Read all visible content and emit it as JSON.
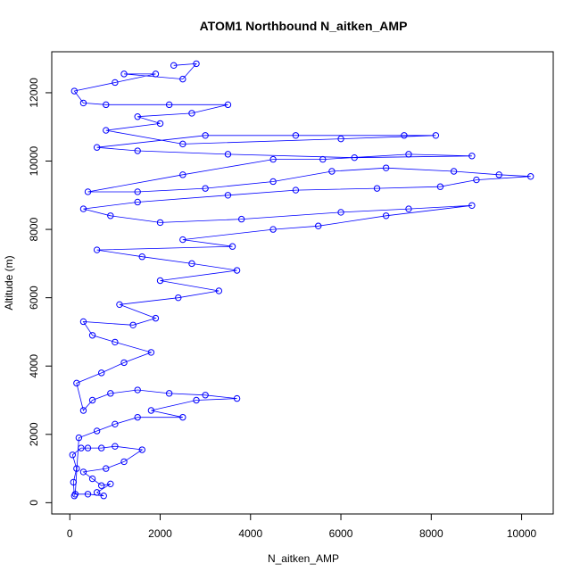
{
  "chart_data": {
    "type": "scatter",
    "title": "ATOM1 Northbound N_aitken_AMP",
    "xlabel": "N_aitken_AMP",
    "ylabel": "Altitude (m)",
    "xlim": [
      -400,
      10700
    ],
    "ylim": [
      -330,
      13200
    ],
    "x_ticks": [
      {
        "value": 0,
        "label": "0"
      },
      {
        "value": 2000,
        "label": "2000"
      },
      {
        "value": 4000,
        "label": "4000"
      },
      {
        "value": 6000,
        "label": "6000"
      },
      {
        "value": 8000,
        "label": "8000"
      },
      {
        "value": 10000,
        "label": "10000"
      }
    ],
    "y_ticks": [
      {
        "value": 0,
        "label": "0"
      },
      {
        "value": 2000,
        "label": "2000"
      },
      {
        "value": 4000,
        "label": "4000"
      },
      {
        "value": 6000,
        "label": "6000"
      },
      {
        "value": 8000,
        "label": "8000"
      },
      {
        "value": 10000,
        "label": "10000"
      },
      {
        "value": 12000,
        "label": "12000"
      }
    ],
    "marker": "open-circle",
    "color": "#0000ff",
    "grid": false,
    "series": [
      {
        "points": [
          {
            "x": 100,
            "y": 200
          },
          {
            "x": 80,
            "y": 600
          },
          {
            "x": 150,
            "y": 1000
          },
          {
            "x": 60,
            "y": 1400
          },
          {
            "x": 250,
            "y": 1600
          },
          {
            "x": 400,
            "y": 1600
          },
          {
            "x": 700,
            "y": 1600
          },
          {
            "x": 1000,
            "y": 1650
          },
          {
            "x": 1600,
            "y": 1550
          },
          {
            "x": 1200,
            "y": 1200
          },
          {
            "x": 800,
            "y": 1000
          },
          {
            "x": 300,
            "y": 900
          },
          {
            "x": 500,
            "y": 700
          },
          {
            "x": 700,
            "y": 500
          },
          {
            "x": 900,
            "y": 550
          },
          {
            "x": 600,
            "y": 300
          },
          {
            "x": 750,
            "y": 200
          },
          {
            "x": 400,
            "y": 250
          },
          {
            "x": 120,
            "y": 250
          },
          {
            "x": 200,
            "y": 1900
          },
          {
            "x": 600,
            "y": 2100
          },
          {
            "x": 1000,
            "y": 2300
          },
          {
            "x": 1500,
            "y": 2500
          },
          {
            "x": 2500,
            "y": 2500
          },
          {
            "x": 1800,
            "y": 2700
          },
          {
            "x": 2800,
            "y": 3000
          },
          {
            "x": 3700,
            "y": 3050
          },
          {
            "x": 3000,
            "y": 3150
          },
          {
            "x": 2200,
            "y": 3200
          },
          {
            "x": 1500,
            "y": 3300
          },
          {
            "x": 900,
            "y": 3200
          },
          {
            "x": 500,
            "y": 3000
          },
          {
            "x": 300,
            "y": 2700
          },
          {
            "x": 150,
            "y": 3500
          },
          {
            "x": 700,
            "y": 3800
          },
          {
            "x": 1200,
            "y": 4100
          },
          {
            "x": 1800,
            "y": 4400
          },
          {
            "x": 1000,
            "y": 4700
          },
          {
            "x": 500,
            "y": 4900
          },
          {
            "x": 300,
            "y": 5300
          },
          {
            "x": 1400,
            "y": 5200
          },
          {
            "x": 1900,
            "y": 5400
          },
          {
            "x": 1100,
            "y": 5800
          },
          {
            "x": 2400,
            "y": 6000
          },
          {
            "x": 3300,
            "y": 6200
          },
          {
            "x": 2000,
            "y": 6500
          },
          {
            "x": 3700,
            "y": 6800
          },
          {
            "x": 2700,
            "y": 7000
          },
          {
            "x": 1600,
            "y": 7200
          },
          {
            "x": 600,
            "y": 7400
          },
          {
            "x": 3600,
            "y": 7500
          },
          {
            "x": 2500,
            "y": 7700
          },
          {
            "x": 4500,
            "y": 8000
          },
          {
            "x": 5500,
            "y": 8100
          },
          {
            "x": 7000,
            "y": 8400
          },
          {
            "x": 8900,
            "y": 8700
          },
          {
            "x": 7500,
            "y": 8600
          },
          {
            "x": 6000,
            "y": 8500
          },
          {
            "x": 3800,
            "y": 8300
          },
          {
            "x": 2000,
            "y": 8200
          },
          {
            "x": 900,
            "y": 8400
          },
          {
            "x": 300,
            "y": 8600
          },
          {
            "x": 1500,
            "y": 8800
          },
          {
            "x": 3500,
            "y": 9000
          },
          {
            "x": 5000,
            "y": 9150
          },
          {
            "x": 6800,
            "y": 9200
          },
          {
            "x": 8200,
            "y": 9250
          },
          {
            "x": 9000,
            "y": 9450
          },
          {
            "x": 10200,
            "y": 9550
          },
          {
            "x": 9500,
            "y": 9600
          },
          {
            "x": 8500,
            "y": 9700
          },
          {
            "x": 7000,
            "y": 9800
          },
          {
            "x": 5800,
            "y": 9700
          },
          {
            "x": 4500,
            "y": 9400
          },
          {
            "x": 3000,
            "y": 9200
          },
          {
            "x": 1500,
            "y": 9100
          },
          {
            "x": 400,
            "y": 9100
          },
          {
            "x": 2500,
            "y": 9600
          },
          {
            "x": 4500,
            "y": 10050
          },
          {
            "x": 5600,
            "y": 10050
          },
          {
            "x": 7500,
            "y": 10200
          },
          {
            "x": 8900,
            "y": 10150
          },
          {
            "x": 6300,
            "y": 10100
          },
          {
            "x": 3500,
            "y": 10200
          },
          {
            "x": 1500,
            "y": 10300
          },
          {
            "x": 600,
            "y": 10400
          },
          {
            "x": 3000,
            "y": 10750
          },
          {
            "x": 5000,
            "y": 10750
          },
          {
            "x": 7400,
            "y": 10750
          },
          {
            "x": 8100,
            "y": 10750
          },
          {
            "x": 6000,
            "y": 10650
          },
          {
            "x": 2500,
            "y": 10500
          },
          {
            "x": 800,
            "y": 10900
          },
          {
            "x": 2000,
            "y": 11100
          },
          {
            "x": 1500,
            "y": 11300
          },
          {
            "x": 2700,
            "y": 11400
          },
          {
            "x": 3500,
            "y": 11650
          },
          {
            "x": 2200,
            "y": 11650
          },
          {
            "x": 800,
            "y": 11650
          },
          {
            "x": 300,
            "y": 11700
          },
          {
            "x": 100,
            "y": 12050
          },
          {
            "x": 1000,
            "y": 12300
          },
          {
            "x": 1900,
            "y": 12550
          },
          {
            "x": 1200,
            "y": 12550
          },
          {
            "x": 2500,
            "y": 12400
          },
          {
            "x": 2800,
            "y": 12850
          },
          {
            "x": 2300,
            "y": 12800
          }
        ]
      }
    ]
  }
}
